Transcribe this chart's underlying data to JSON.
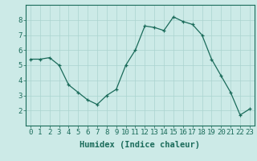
{
  "x": [
    0,
    1,
    2,
    3,
    4,
    5,
    6,
    7,
    8,
    9,
    10,
    11,
    12,
    13,
    14,
    15,
    16,
    17,
    18,
    19,
    20,
    21,
    22,
    23
  ],
  "y": [
    5.4,
    5.4,
    5.5,
    5.0,
    3.7,
    3.2,
    2.7,
    2.4,
    3.0,
    3.4,
    5.0,
    6.0,
    7.6,
    7.5,
    7.3,
    8.2,
    7.9,
    7.7,
    7.0,
    5.4,
    4.3,
    3.2,
    1.7,
    2.1
  ],
  "line_color": "#1a6b5a",
  "marker": "+",
  "marker_size": 3,
  "bg_color": "#cceae7",
  "grid_color": "#aad4d0",
  "xlabel": "Humidex (Indice chaleur)",
  "ylim": [
    1.0,
    9.0
  ],
  "xlim": [
    -0.5,
    23.5
  ],
  "yticks": [
    2,
    3,
    4,
    5,
    6,
    7,
    8
  ],
  "xticks": [
    0,
    1,
    2,
    3,
    4,
    5,
    6,
    7,
    8,
    9,
    10,
    11,
    12,
    13,
    14,
    15,
    16,
    17,
    18,
    19,
    20,
    21,
    22,
    23
  ],
  "tick_color": "#1a6b5a",
  "label_fontsize": 6.5,
  "xlabel_fontsize": 7.5
}
